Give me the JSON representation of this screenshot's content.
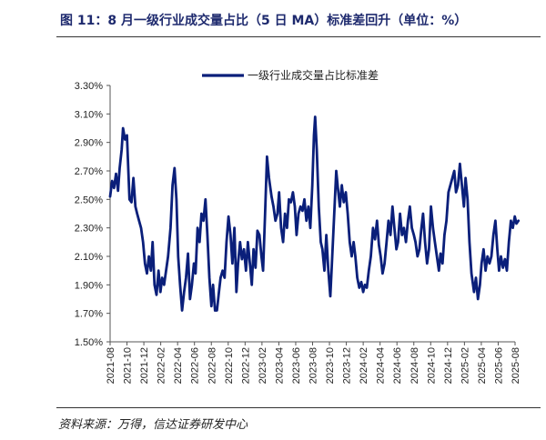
{
  "figure": {
    "title": "图 11：8 月一级行业成交量占比（5 日 MA）标准差回升（单位：%）",
    "source": "资料来源：万得，信达证券研发中心"
  },
  "chart_data": {
    "type": "line",
    "title": "",
    "xlabel": "",
    "ylabel": "",
    "ylim": [
      1.5,
      3.3
    ],
    "yticks": [
      "3.30%",
      "3.10%",
      "2.90%",
      "2.70%",
      "2.50%",
      "2.30%",
      "2.10%",
      "1.90%",
      "1.70%",
      "1.50%"
    ],
    "ytick_values": [
      3.3,
      3.1,
      2.9,
      2.7,
      2.5,
      2.3,
      2.1,
      1.9,
      1.7,
      1.5
    ],
    "xticks": [
      "2021-08",
      "2021-10",
      "2021-12",
      "2022-02",
      "2022-04",
      "2022-06",
      "2022-08",
      "2022-10",
      "2022-12",
      "2023-02",
      "2023-04",
      "2023-06",
      "2023-08",
      "2023-10",
      "2023-12",
      "2024-02",
      "2024-04",
      "2024-06",
      "2024-08",
      "2024-10",
      "2024-12",
      "2025-02",
      "2025-04",
      "2025-06",
      "2025-08"
    ],
    "legend_position": "top-center",
    "grid": false,
    "color": "#0a1f7a",
    "series": [
      {
        "name": "一级行业成交量占比标准差",
        "points": [
          [
            "2021-08-01",
            2.52
          ],
          [
            "2021-08-08",
            2.63
          ],
          [
            "2021-08-15",
            2.58
          ],
          [
            "2021-08-22",
            2.68
          ],
          [
            "2021-08-29",
            2.56
          ],
          [
            "2021-09-05",
            2.72
          ],
          [
            "2021-09-12",
            2.85
          ],
          [
            "2021-09-17",
            3.0
          ],
          [
            "2021-09-24",
            2.92
          ],
          [
            "2021-10-01",
            2.95
          ],
          [
            "2021-10-10",
            2.5
          ],
          [
            "2021-10-17",
            2.48
          ],
          [
            "2021-10-24",
            2.65
          ],
          [
            "2021-10-31",
            2.45
          ],
          [
            "2021-11-07",
            2.4
          ],
          [
            "2021-11-14",
            2.35
          ],
          [
            "2021-11-21",
            2.3
          ],
          [
            "2021-11-28",
            2.2
          ],
          [
            "2021-12-05",
            2.05
          ],
          [
            "2021-12-12",
            1.98
          ],
          [
            "2021-12-19",
            2.1
          ],
          [
            "2021-12-26",
            2.0
          ],
          [
            "2022-01-02",
            2.2
          ],
          [
            "2022-01-09",
            1.9
          ],
          [
            "2022-01-16",
            1.83
          ],
          [
            "2022-01-23",
            2.0
          ],
          [
            "2022-01-30",
            1.85
          ],
          [
            "2022-02-06",
            1.95
          ],
          [
            "2022-02-13",
            1.9
          ],
          [
            "2022-02-20",
            2.0
          ],
          [
            "2022-02-27",
            2.1
          ],
          [
            "2022-03-06",
            2.3
          ],
          [
            "2022-03-13",
            2.6
          ],
          [
            "2022-03-20",
            2.72
          ],
          [
            "2022-03-27",
            2.5
          ],
          [
            "2022-04-03",
            2.1
          ],
          [
            "2022-04-10",
            1.9
          ],
          [
            "2022-04-17",
            1.72
          ],
          [
            "2022-04-24",
            1.85
          ],
          [
            "2022-05-01",
            1.95
          ],
          [
            "2022-05-08",
            2.12
          ],
          [
            "2022-05-15",
            1.8
          ],
          [
            "2022-05-22",
            1.9
          ],
          [
            "2022-05-29",
            2.05
          ],
          [
            "2022-06-05",
            1.98
          ],
          [
            "2022-06-12",
            2.3
          ],
          [
            "2022-06-19",
            2.2
          ],
          [
            "2022-06-26",
            2.4
          ],
          [
            "2022-07-03",
            2.35
          ],
          [
            "2022-07-10",
            2.5
          ],
          [
            "2022-07-17",
            2.25
          ],
          [
            "2022-07-24",
            1.95
          ],
          [
            "2022-07-31",
            1.75
          ],
          [
            "2022-08-07",
            1.9
          ],
          [
            "2022-08-14",
            1.72
          ],
          [
            "2022-08-21",
            1.72
          ],
          [
            "2022-08-28",
            1.85
          ],
          [
            "2022-09-04",
            1.95
          ],
          [
            "2022-09-11",
            2.0
          ],
          [
            "2022-09-18",
            1.95
          ],
          [
            "2022-09-25",
            2.2
          ],
          [
            "2022-10-02",
            2.38
          ],
          [
            "2022-10-09",
            2.25
          ],
          [
            "2022-10-16",
            2.05
          ],
          [
            "2022-10-23",
            2.3
          ],
          [
            "2022-10-30",
            1.85
          ],
          [
            "2022-11-06",
            2.05
          ],
          [
            "2022-11-13",
            2.2
          ],
          [
            "2022-11-20",
            2.08
          ],
          [
            "2022-11-27",
            2.15
          ],
          [
            "2022-12-04",
            2.0
          ],
          [
            "2022-12-11",
            2.2
          ],
          [
            "2022-12-18",
            2.05
          ],
          [
            "2022-12-25",
            1.9
          ],
          [
            "2023-01-01",
            2.15
          ],
          [
            "2023-01-08",
            2.02
          ],
          [
            "2023-01-15",
            2.28
          ],
          [
            "2023-01-22",
            2.25
          ],
          [
            "2023-01-29",
            2.1
          ],
          [
            "2023-02-05",
            2.0
          ],
          [
            "2023-02-12",
            2.4
          ],
          [
            "2023-02-19",
            2.8
          ],
          [
            "2023-02-26",
            2.65
          ],
          [
            "2023-03-05",
            2.52
          ],
          [
            "2023-03-12",
            2.45
          ],
          [
            "2023-03-19",
            2.35
          ],
          [
            "2023-03-26",
            2.4
          ],
          [
            "2023-04-02",
            2.55
          ],
          [
            "2023-04-09",
            2.3
          ],
          [
            "2023-04-16",
            2.2
          ],
          [
            "2023-04-23",
            2.4
          ],
          [
            "2023-04-30",
            2.3
          ],
          [
            "2023-05-07",
            2.5
          ],
          [
            "2023-05-14",
            2.48
          ],
          [
            "2023-05-21",
            2.55
          ],
          [
            "2023-05-28",
            2.45
          ],
          [
            "2023-06-04",
            2.25
          ],
          [
            "2023-06-11",
            2.4
          ],
          [
            "2023-06-18",
            2.45
          ],
          [
            "2023-06-25",
            2.42
          ],
          [
            "2023-07-02",
            2.5
          ],
          [
            "2023-07-09",
            2.35
          ],
          [
            "2023-07-16",
            2.45
          ],
          [
            "2023-07-23",
            2.3
          ],
          [
            "2023-07-30",
            2.6
          ],
          [
            "2023-08-06",
            2.95
          ],
          [
            "2023-08-10",
            3.08
          ],
          [
            "2023-08-16",
            2.85
          ],
          [
            "2023-08-23",
            2.45
          ],
          [
            "2023-08-30",
            2.2
          ],
          [
            "2023-09-06",
            2.15
          ],
          [
            "2023-09-13",
            2.0
          ],
          [
            "2023-09-20",
            2.25
          ],
          [
            "2023-09-27",
            2.0
          ],
          [
            "2023-10-04",
            1.82
          ],
          [
            "2023-10-11",
            2.1
          ],
          [
            "2023-10-18",
            2.4
          ],
          [
            "2023-10-25",
            2.7
          ],
          [
            "2023-11-01",
            2.58
          ],
          [
            "2023-11-08",
            2.45
          ],
          [
            "2023-11-15",
            2.6
          ],
          [
            "2023-11-22",
            2.48
          ],
          [
            "2023-11-29",
            2.55
          ],
          [
            "2023-12-06",
            2.4
          ],
          [
            "2023-12-13",
            2.2
          ],
          [
            "2023-12-20",
            2.1
          ],
          [
            "2023-12-27",
            2.2
          ],
          [
            "2024-01-03",
            2.1
          ],
          [
            "2024-01-10",
            1.95
          ],
          [
            "2024-01-17",
            1.88
          ],
          [
            "2024-01-24",
            1.92
          ],
          [
            "2024-01-31",
            1.85
          ],
          [
            "2024-02-07",
            1.9
          ],
          [
            "2024-02-14",
            1.88
          ],
          [
            "2024-02-21",
            2.0
          ],
          [
            "2024-02-28",
            2.1
          ],
          [
            "2024-03-06",
            2.3
          ],
          [
            "2024-03-13",
            2.22
          ],
          [
            "2024-03-20",
            2.35
          ],
          [
            "2024-03-27",
            2.18
          ],
          [
            "2024-04-03",
            2.1
          ],
          [
            "2024-04-10",
            1.98
          ],
          [
            "2024-04-17",
            2.05
          ],
          [
            "2024-04-24",
            2.2
          ],
          [
            "2024-05-01",
            2.35
          ],
          [
            "2024-05-08",
            2.25
          ],
          [
            "2024-05-15",
            2.45
          ],
          [
            "2024-05-22",
            2.3
          ],
          [
            "2024-05-29",
            2.15
          ],
          [
            "2024-06-05",
            2.2
          ],
          [
            "2024-06-12",
            2.4
          ],
          [
            "2024-06-19",
            2.25
          ],
          [
            "2024-06-26",
            2.3
          ],
          [
            "2024-07-03",
            2.2
          ],
          [
            "2024-07-10",
            2.35
          ],
          [
            "2024-07-17",
            2.45
          ],
          [
            "2024-07-24",
            2.3
          ],
          [
            "2024-07-31",
            2.25
          ],
          [
            "2024-08-07",
            2.2
          ],
          [
            "2024-08-14",
            2.1
          ],
          [
            "2024-08-21",
            2.15
          ],
          [
            "2024-08-28",
            2.3
          ],
          [
            "2024-09-04",
            2.4
          ],
          [
            "2024-09-11",
            2.2
          ],
          [
            "2024-09-18",
            2.05
          ],
          [
            "2024-09-25",
            2.15
          ],
          [
            "2024-10-02",
            2.45
          ],
          [
            "2024-10-09",
            2.3
          ],
          [
            "2024-10-16",
            2.2
          ],
          [
            "2024-10-23",
            2.1
          ],
          [
            "2024-10-30",
            2.0
          ],
          [
            "2024-11-06",
            2.12
          ],
          [
            "2024-11-13",
            2.05
          ],
          [
            "2024-11-20",
            2.25
          ],
          [
            "2024-11-27",
            2.35
          ],
          [
            "2024-12-04",
            2.55
          ],
          [
            "2024-12-11",
            2.6
          ],
          [
            "2024-12-18",
            2.65
          ],
          [
            "2024-12-25",
            2.7
          ],
          [
            "2025-01-01",
            2.55
          ],
          [
            "2025-01-08",
            2.6
          ],
          [
            "2025-01-15",
            2.75
          ],
          [
            "2025-01-22",
            2.6
          ],
          [
            "2025-01-29",
            2.45
          ],
          [
            "2025-02-05",
            2.65
          ],
          [
            "2025-02-12",
            2.5
          ],
          [
            "2025-02-19",
            2.2
          ],
          [
            "2025-02-26",
            1.98
          ],
          [
            "2025-03-05",
            1.85
          ],
          [
            "2025-03-12",
            1.95
          ],
          [
            "2025-03-19",
            1.8
          ],
          [
            "2025-03-26",
            1.9
          ],
          [
            "2025-04-02",
            2.05
          ],
          [
            "2025-04-09",
            2.15
          ],
          [
            "2025-04-16",
            2.0
          ],
          [
            "2025-04-23",
            2.1
          ],
          [
            "2025-04-30",
            2.05
          ],
          [
            "2025-05-07",
            2.1
          ],
          [
            "2025-05-14",
            2.25
          ],
          [
            "2025-05-21",
            2.35
          ],
          [
            "2025-05-28",
            2.15
          ],
          [
            "2025-06-04",
            2.0
          ],
          [
            "2025-06-11",
            2.1
          ],
          [
            "2025-06-18",
            2.02
          ],
          [
            "2025-06-25",
            2.08
          ],
          [
            "2025-07-02",
            2.0
          ],
          [
            "2025-07-09",
            2.2
          ],
          [
            "2025-07-16",
            2.35
          ],
          [
            "2025-07-23",
            2.3
          ],
          [
            "2025-07-30",
            2.38
          ],
          [
            "2025-08-06",
            2.33
          ],
          [
            "2025-08-13",
            2.35
          ]
        ]
      }
    ]
  }
}
